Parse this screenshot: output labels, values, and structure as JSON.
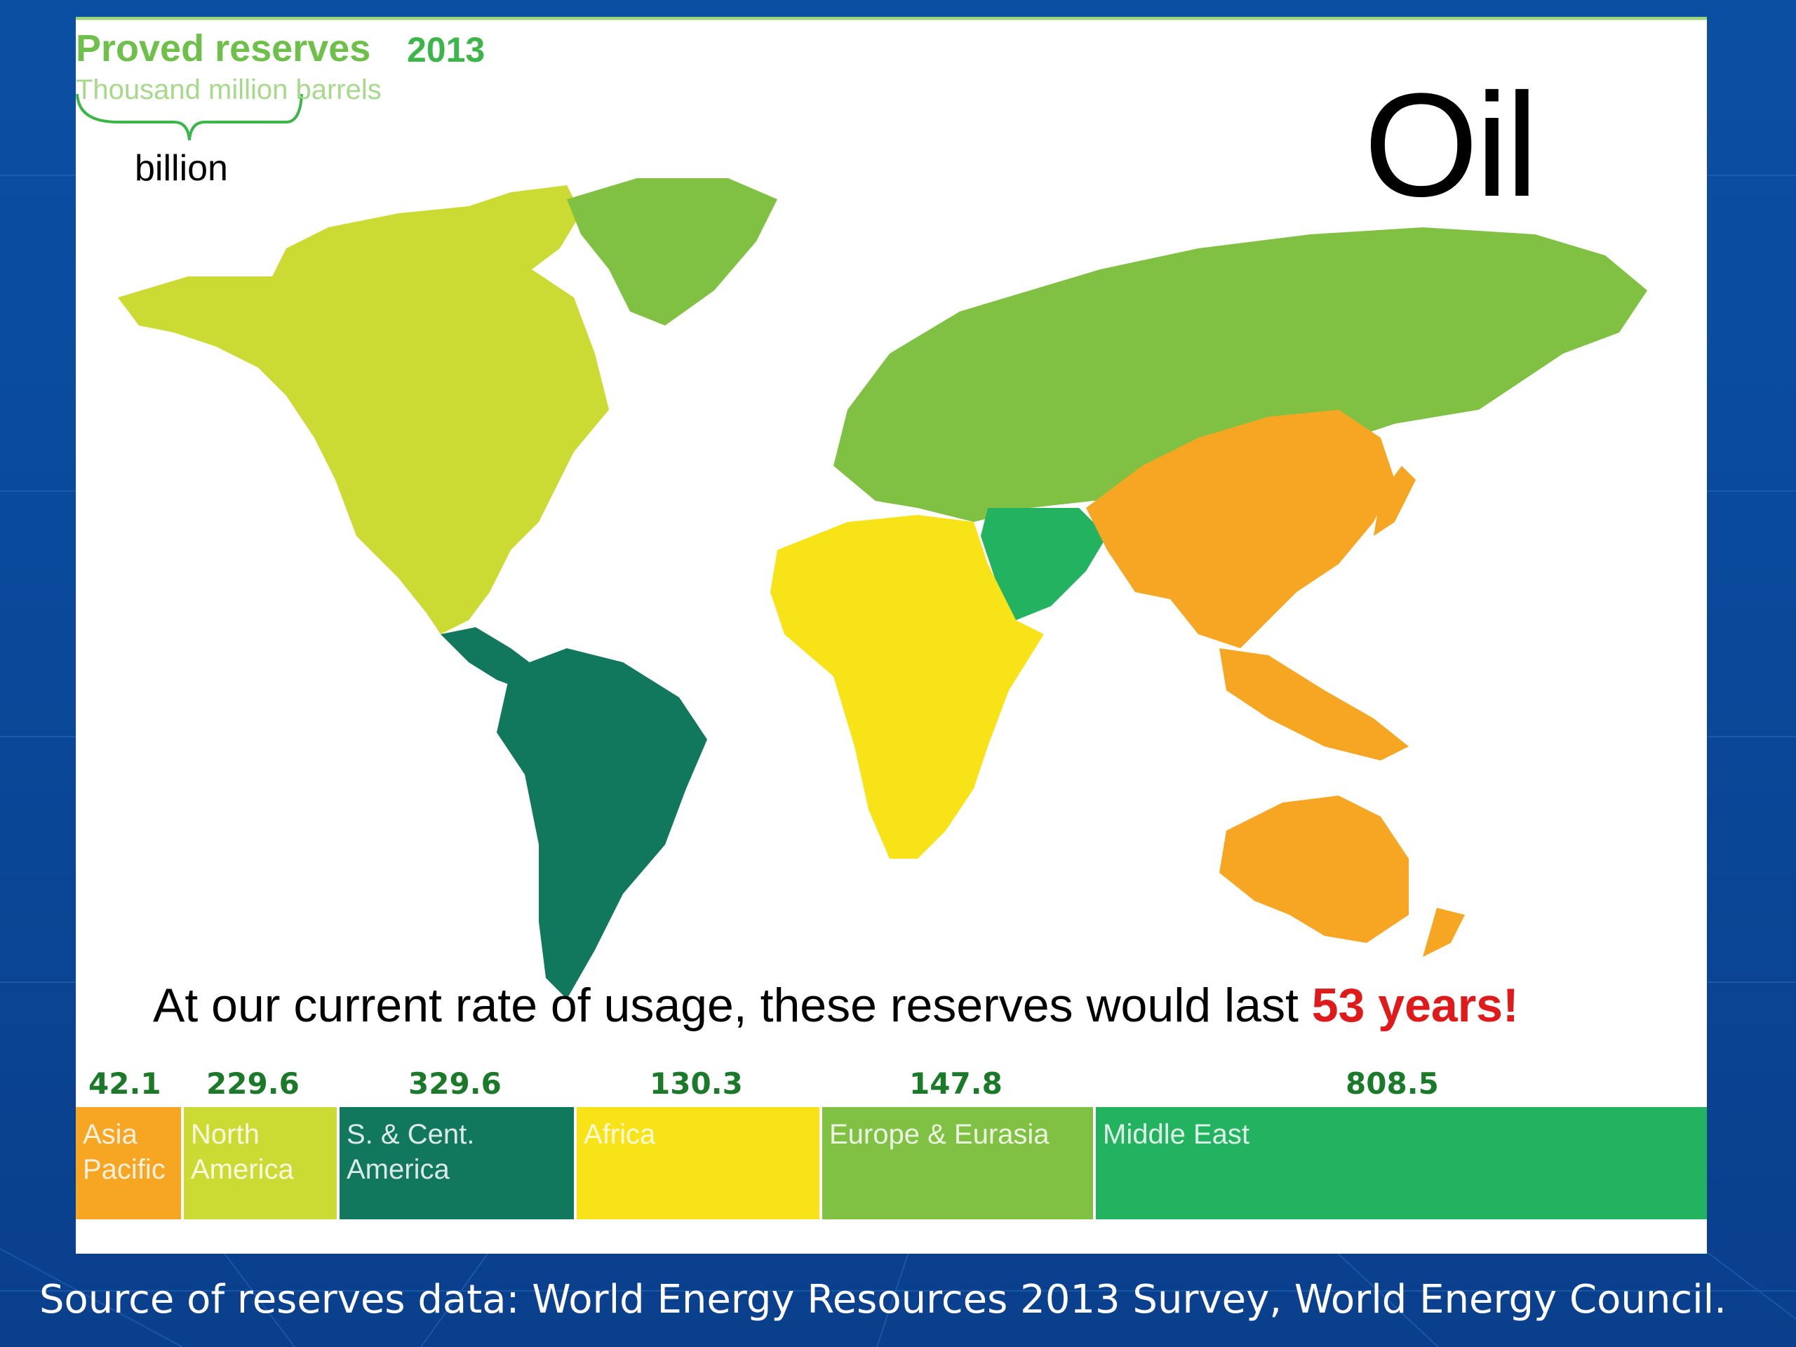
{
  "header": {
    "title": "Proved reserves",
    "year": "2013",
    "unit": "Thousand million barrels",
    "unit_note": "billion"
  },
  "resource_label": "Oil",
  "usage_text": "At our current rate of usage, these reserves would last ",
  "usage_highlight": "53 years!",
  "regions": [
    {
      "name": "Asia Pacific",
      "line1": "Asia",
      "line2": "Pacific",
      "value": "42.1",
      "color": "#f6a623"
    },
    {
      "name": "North America",
      "line1": "North",
      "line2": "America",
      "value": "229.6",
      "color": "#cbdb34"
    },
    {
      "name": "S. & Cent. America",
      "line1": "S. & Cent.",
      "line2": "America",
      "value": "329.6",
      "color": "#11775d"
    },
    {
      "name": "Africa",
      "line1": "Africa",
      "line2": "",
      "value": "130.3",
      "color": "#f7e318"
    },
    {
      "name": "Europe & Eurasia",
      "line1": "Europe & Eurasia",
      "line2": "",
      "value": "147.8",
      "color": "#80c144"
    },
    {
      "name": "Middle East",
      "line1": "Middle East",
      "line2": "",
      "value": "808.5",
      "color": "#22b260"
    }
  ],
  "source": "Source of reserves data: World Energy Resources 2013 Survey, World Energy Council."
}
